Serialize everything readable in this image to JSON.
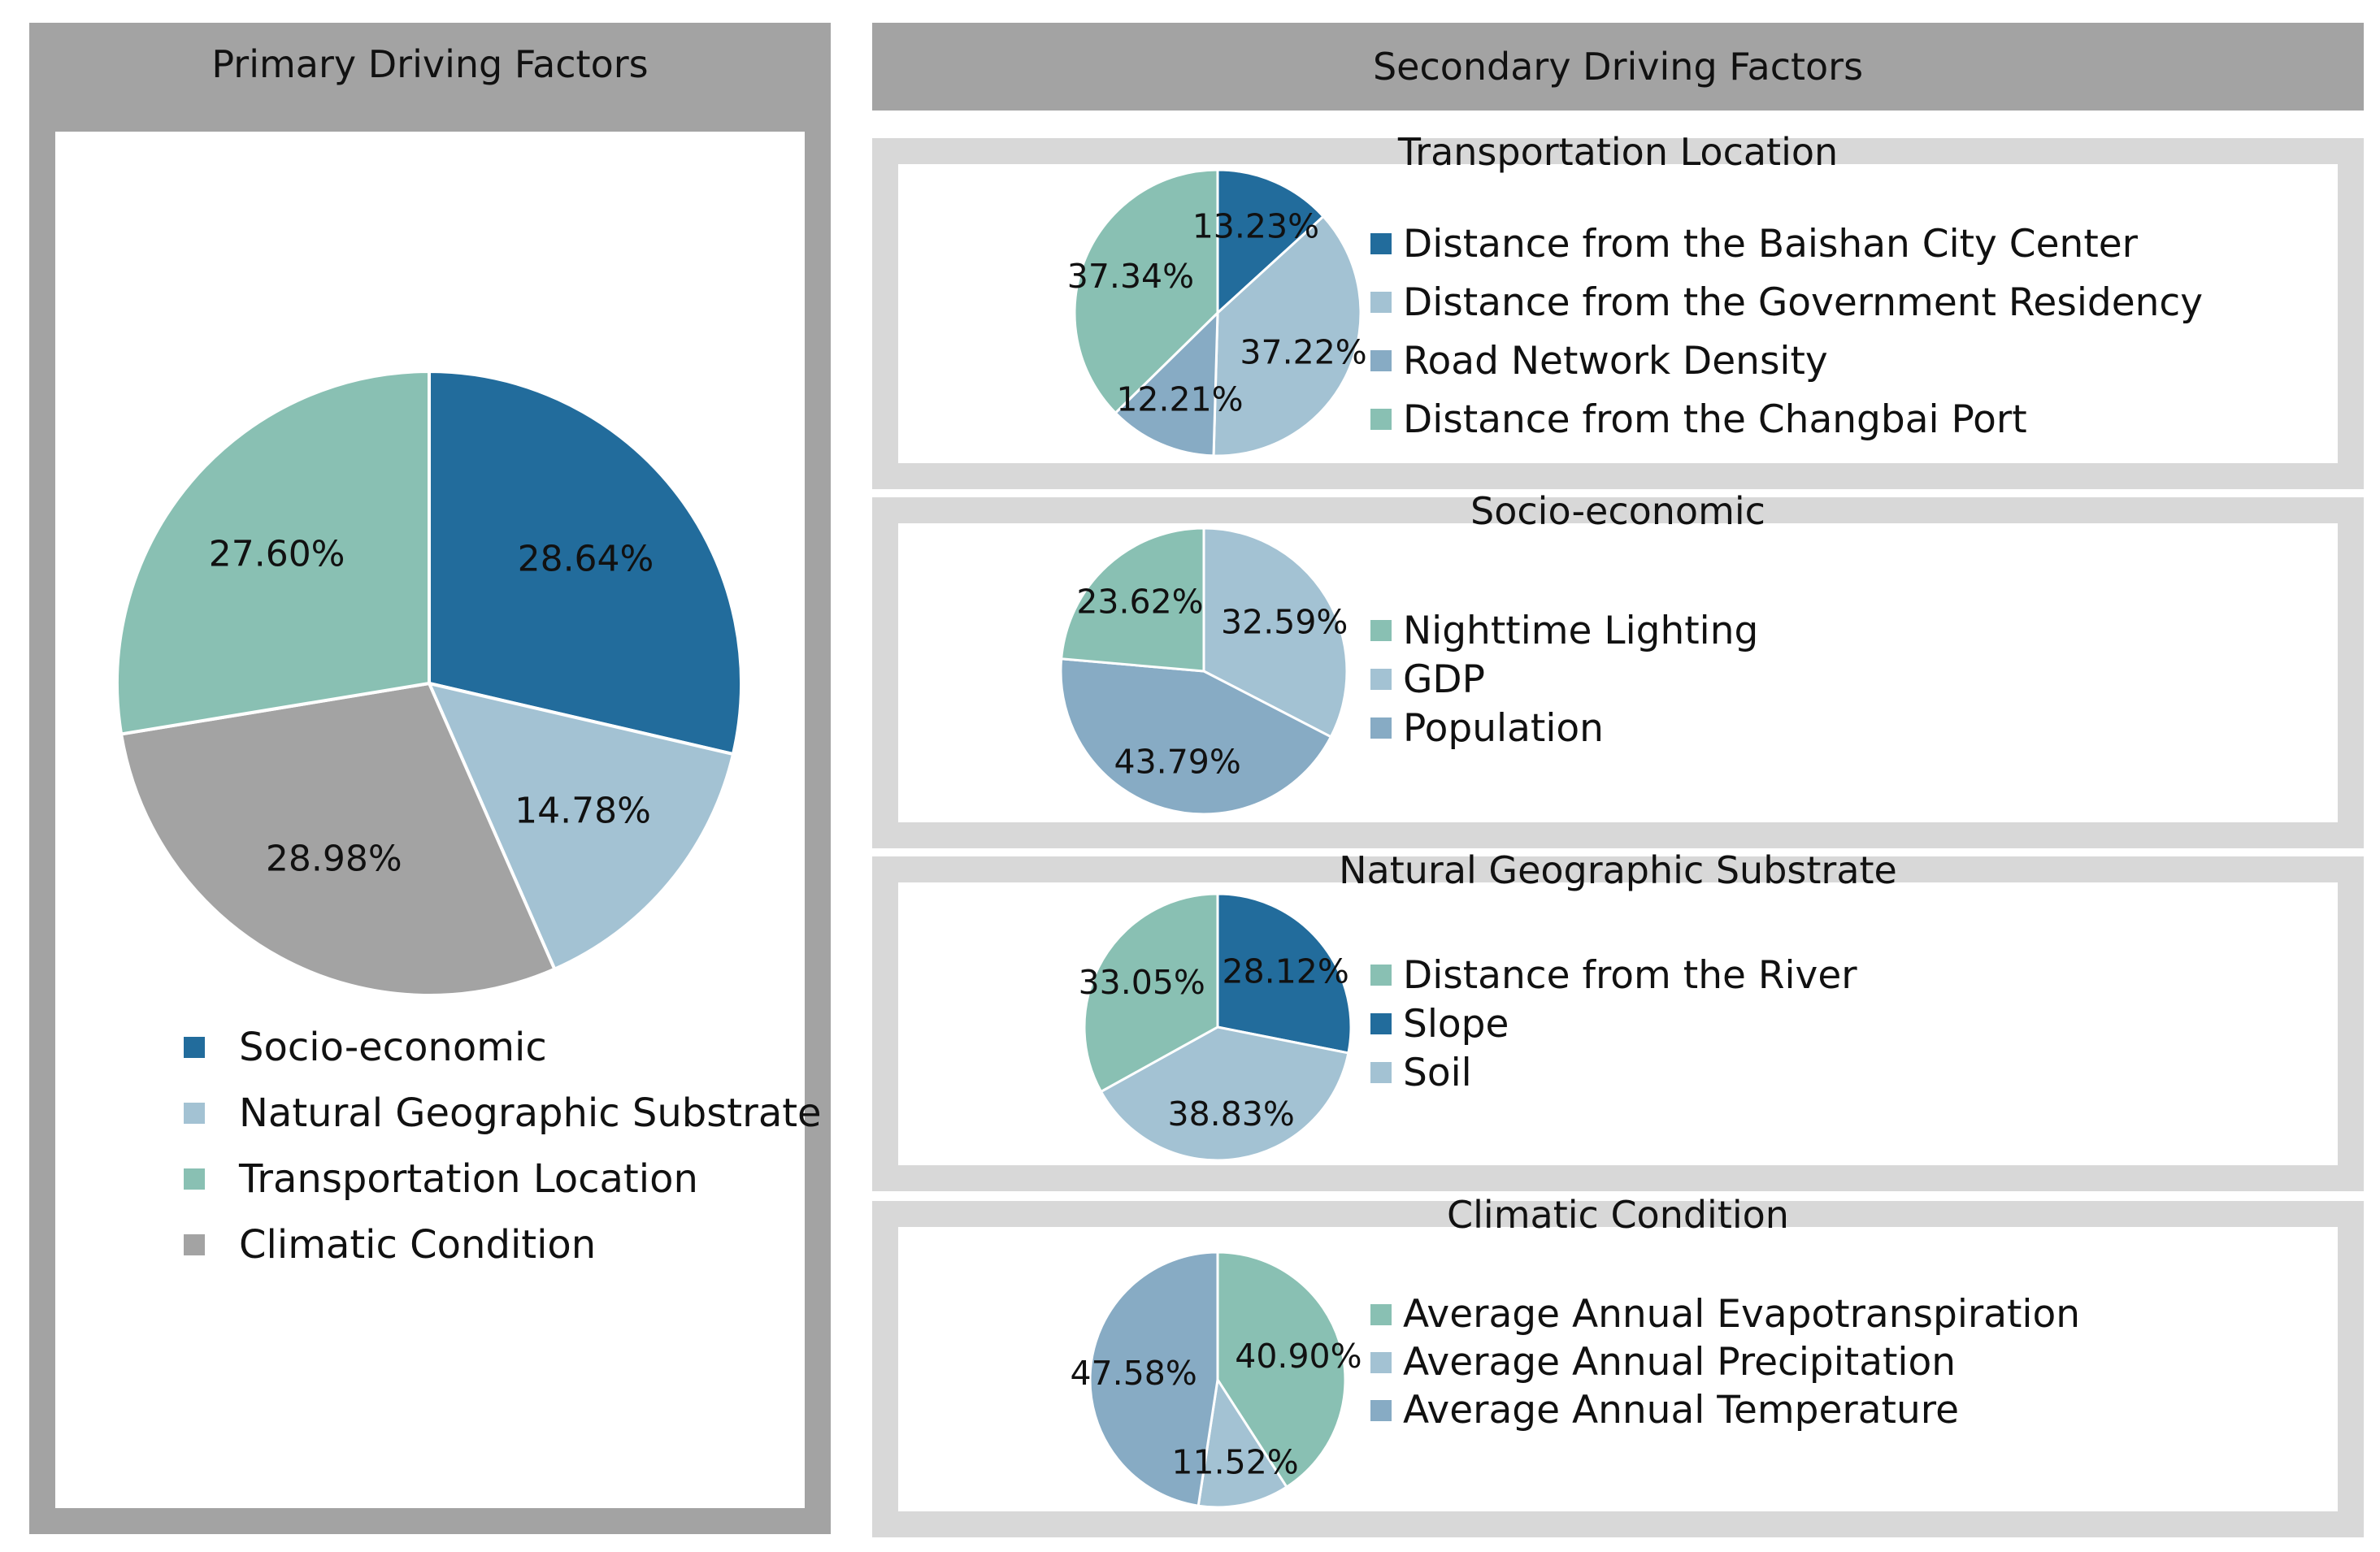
{
  "colors": {
    "dark_blue": "#226c9c",
    "light_blue": "#a3c2d3",
    "teal": "#89c0b3",
    "gray": "#a3a3a3",
    "steel_blue": "#87abc4"
  },
  "headers": {
    "primary": "Primary Driving Factors",
    "secondary": "Secondary Driving Factors"
  },
  "chart_data": [
    {
      "type": "pie",
      "title": "Primary Driving Factors",
      "categories": [
        "Socio-economic",
        "Natural Geographic Substrate",
        "Climatic Condition",
        "Transportation Location"
      ],
      "values": [
        28.64,
        14.78,
        28.98,
        27.6
      ],
      "labels": [
        "28.64%",
        "14.78%",
        "28.98%",
        "27.60%"
      ],
      "colors": [
        "#226c9c",
        "#a3c2d3",
        "#a3a3a3",
        "#89c0b3"
      ],
      "legend": [
        "Socio-economic",
        "Natural Geographic Substrate",
        "Transportation Location",
        "Climatic Condition"
      ],
      "legend_colors": [
        "#226c9c",
        "#a3c2d3",
        "#89c0b3",
        "#a3a3a3"
      ],
      "legend_position": "bottom"
    },
    {
      "type": "pie",
      "title": "Transportation Location",
      "categories": [
        "Distance from the Baishan City Center",
        "Distance from the Government Residency",
        "Road Network Density",
        "Distance from the Changbai Port"
      ],
      "values": [
        13.23,
        37.22,
        12.21,
        37.34
      ],
      "labels": [
        "13.23%",
        "37.22%",
        "12.21%",
        "37.34%"
      ],
      "colors": [
        "#226c9c",
        "#a3c2d3",
        "#87abc4",
        "#89c0b3"
      ],
      "legend": [
        "Distance from the Baishan City Center",
        "Distance from the Government Residency",
        "Road Network Density",
        "Distance from the Changbai Port"
      ],
      "legend_colors": [
        "#226c9c",
        "#a3c2d3",
        "#87abc4",
        "#89c0b3"
      ],
      "legend_position": "right"
    },
    {
      "type": "pie",
      "title": "Socio-economic",
      "categories": [
        "GDP",
        "Population",
        "Nighttime Lighting"
      ],
      "values": [
        32.59,
        43.79,
        23.62
      ],
      "labels": [
        "32.59%",
        "43.79%",
        "23.62%"
      ],
      "colors": [
        "#a3c2d3",
        "#87abc4",
        "#89c0b3"
      ],
      "legend": [
        "Nighttime Lighting",
        "GDP",
        "Population"
      ],
      "legend_colors": [
        "#89c0b3",
        "#a3c2d3",
        "#87abc4"
      ],
      "legend_position": "right"
    },
    {
      "type": "pie",
      "title": "Natural Geographic Substrate",
      "categories": [
        "Slope",
        "Soil",
        "Distance from the River"
      ],
      "values": [
        28.12,
        38.83,
        33.05
      ],
      "labels": [
        "28.12%",
        "38.83%",
        "33.05%"
      ],
      "colors": [
        "#226c9c",
        "#a3c2d3",
        "#89c0b3"
      ],
      "legend": [
        "Distance from the River",
        "Slope",
        "Soil"
      ],
      "legend_colors": [
        "#89c0b3",
        "#226c9c",
        "#a3c2d3"
      ],
      "legend_position": "right"
    },
    {
      "type": "pie",
      "title": "Climatic Condition",
      "categories": [
        "Average Annual Evapotranspiration",
        "Average Annual Precipitation",
        "Average Annual Temperature"
      ],
      "values": [
        40.9,
        11.52,
        47.58
      ],
      "labels": [
        "40.90%",
        "11.52%",
        "47.58%"
      ],
      "colors": [
        "#89c0b3",
        "#a3c2d3",
        "#87abc4"
      ],
      "legend": [
        "Average Annual Evapotranspiration",
        "Average Annual Precipitation",
        "Average Annual Temperature"
      ],
      "legend_colors": [
        "#89c0b3",
        "#a3c2d3",
        "#87abc4"
      ],
      "legend_position": "right"
    }
  ]
}
